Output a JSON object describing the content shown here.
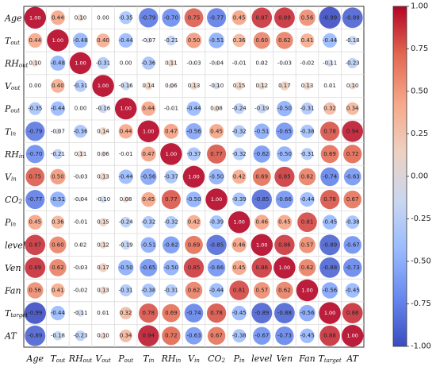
{
  "chart_data": {
    "type": "heatmap",
    "title": "",
    "xlabel": "",
    "ylabel": "",
    "variables": [
      {
        "base": "Age",
        "sub": ""
      },
      {
        "base": "T",
        "sub": "out"
      },
      {
        "base": "RH",
        "sub": "out"
      },
      {
        "base": "V",
        "sub": "out"
      },
      {
        "base": "P",
        "sub": "out"
      },
      {
        "base": "T",
        "sub": "in"
      },
      {
        "base": "RH",
        "sub": "in"
      },
      {
        "base": "V",
        "sub": "in"
      },
      {
        "base": "CO",
        "sub": "2"
      },
      {
        "base": "P",
        "sub": "in"
      },
      {
        "base": "level",
        "sub": ""
      },
      {
        "base": "Ven",
        "sub": ""
      },
      {
        "base": "Fan",
        "sub": ""
      },
      {
        "base": "T",
        "sub": "target"
      },
      {
        "base": "AT",
        "sub": ""
      }
    ],
    "matrix": [
      [
        1.0,
        0.44,
        0.1,
        -0.0,
        -0.35,
        -0.79,
        -0.7,
        0.75,
        -0.77,
        0.45,
        0.87,
        0.89,
        0.56,
        -0.99,
        -0.89
      ],
      [
        0.44,
        1.0,
        -0.48,
        0.4,
        -0.44,
        -0.07,
        -0.21,
        0.5,
        -0.51,
        0.36,
        0.6,
        0.62,
        0.41,
        -0.44,
        -0.18
      ],
      [
        0.1,
        -0.48,
        1.0,
        -0.31,
        -0.0,
        -0.36,
        0.11,
        -0.03,
        -0.04,
        -0.01,
        0.02,
        -0.03,
        -0.02,
        -0.11,
        -0.23
      ],
      [
        -0.0,
        0.4,
        -0.31,
        1.0,
        -0.16,
        0.14,
        0.06,
        0.13,
        -0.1,
        0.15,
        0.12,
        0.17,
        0.13,
        0.01,
        0.1
      ],
      [
        -0.35,
        -0.44,
        -0.0,
        -0.16,
        1.0,
        0.44,
        -0.01,
        -0.44,
        0.08,
        -0.24,
        -0.19,
        -0.5,
        -0.31,
        0.32,
        0.34
      ],
      [
        -0.79,
        -0.07,
        -0.36,
        0.14,
        0.44,
        1.0,
        0.47,
        -0.56,
        0.45,
        -0.32,
        -0.51,
        -0.65,
        -0.38,
        0.78,
        0.94
      ],
      [
        -0.7,
        -0.21,
        0.11,
        0.06,
        -0.01,
        0.47,
        1.0,
        -0.37,
        0.77,
        -0.32,
        -0.62,
        -0.5,
        -0.31,
        0.69,
        0.72
      ],
      [
        0.75,
        0.5,
        -0.03,
        0.13,
        -0.44,
        -0.56,
        -0.37,
        1.0,
        -0.5,
        0.42,
        0.69,
        0.85,
        0.62,
        -0.74,
        -0.63
      ],
      [
        -0.77,
        -0.51,
        -0.04,
        -0.1,
        0.08,
        0.45,
        0.77,
        -0.5,
        1.0,
        -0.39,
        -0.85,
        -0.66,
        -0.44,
        0.78,
        0.67
      ],
      [
        0.45,
        0.36,
        -0.01,
        0.15,
        -0.24,
        -0.32,
        -0.32,
        0.42,
        -0.39,
        1.0,
        0.46,
        0.45,
        0.81,
        -0.45,
        -0.38
      ],
      [
        0.87,
        0.6,
        0.02,
        0.12,
        -0.19,
        -0.51,
        -0.62,
        0.69,
        -0.85,
        0.46,
        1.0,
        0.86,
        0.57,
        -0.89,
        -0.67
      ],
      [
        0.89,
        0.62,
        -0.03,
        0.17,
        -0.5,
        -0.65,
        -0.5,
        0.85,
        -0.66,
        0.45,
        0.86,
        1.0,
        0.62,
        -0.88,
        -0.73
      ],
      [
        0.56,
        0.41,
        -0.02,
        0.13,
        -0.31,
        -0.38,
        -0.31,
        0.62,
        -0.44,
        0.81,
        0.57,
        0.62,
        1.0,
        -0.56,
        -0.45
      ],
      [
        -0.99,
        -0.44,
        -0.11,
        0.01,
        0.32,
        0.78,
        0.69,
        -0.74,
        0.78,
        -0.45,
        -0.89,
        -0.88,
        -0.56,
        1.0,
        0.88
      ],
      [
        -0.89,
        -0.18,
        -0.23,
        0.1,
        0.34,
        0.94,
        0.72,
        -0.63,
        0.67,
        -0.38,
        -0.67,
        -0.73,
        -0.45,
        0.88,
        1.0
      ]
    ],
    "value_range": [
      -1.0,
      1.0
    ],
    "colorbar": {
      "ticks": [
        "1.00",
        "0.75",
        "0.50",
        "0.25",
        "0.00",
        "-0.25",
        "-0.50",
        "-0.75",
        "-1.00"
      ],
      "colormap": "coolwarm",
      "stops": [
        "#3b4cc0",
        "#6788ee",
        "#9abbff",
        "#c9d7f0",
        "#edd1c2",
        "#f7a889",
        "#e26952",
        "#b40426"
      ]
    },
    "marker": "circle sized by |r|",
    "grid": true,
    "legend": "colorbar right"
  }
}
